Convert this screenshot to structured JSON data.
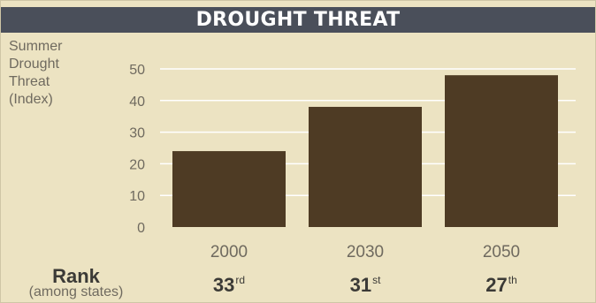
{
  "header": {
    "title": "DROUGHT THREAT"
  },
  "y_label": "Summer\nDrought\nThreat\n(Index)",
  "rank_label": "Rank",
  "rank_sublabel": "(among states)",
  "ranks": [
    {
      "year": "2000",
      "number": "33",
      "suffix": "rd"
    },
    {
      "year": "2030",
      "number": "31",
      "suffix": "st"
    },
    {
      "year": "2050",
      "number": "27",
      "suffix": "th"
    }
  ],
  "colors": {
    "background": "#ece3c2",
    "title_bar": "#4a4f5a",
    "bar": "#4e3b24",
    "grid": "#ffffff",
    "text": "#6f6a5f"
  },
  "chart_data": {
    "type": "bar",
    "title": "DROUGHT THREAT",
    "xlabel": "",
    "ylabel": "Summer Drought Threat (Index)",
    "categories": [
      "2000",
      "2030",
      "2050"
    ],
    "values": [
      24,
      38,
      48
    ],
    "ylim": [
      0,
      50
    ],
    "yticks": [
      0,
      10,
      20,
      30,
      40,
      50
    ],
    "grid": true,
    "legend": "none"
  }
}
